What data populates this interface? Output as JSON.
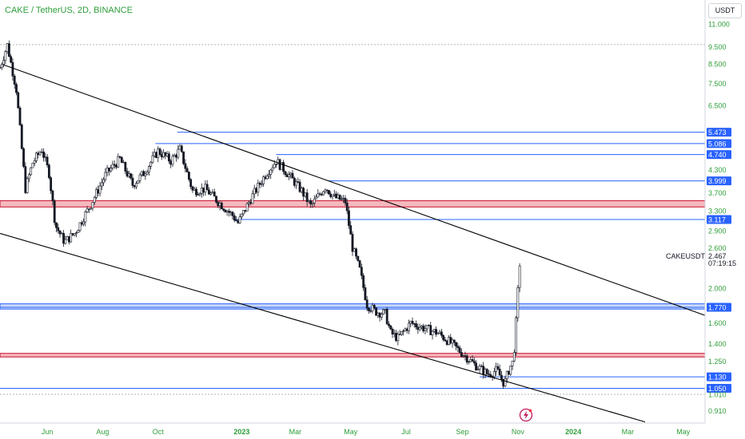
{
  "header": {
    "title": "CAKE / TetherUS, 2D, BINANCE",
    "currency": "USDT"
  },
  "current": {
    "symbol": "CAKEUSDT",
    "price": "2.467",
    "countdown": "07:19:15"
  },
  "colors": {
    "title": "#2e9e3a",
    "axis_text": "#2e9e3a",
    "candle": "#131722",
    "level_line": "#2962ff",
    "level_badge": "#2962ff",
    "resistance_zone": "#f4b8bd",
    "resistance_border": "#c8102e",
    "support_zone": "#c9d8f7",
    "channel_line": "#000000"
  },
  "chart_data": {
    "type": "candlestick",
    "title": "CAKE / TetherUS, 2D, BINANCE",
    "y_scale": "log",
    "ylim": [
      0.85,
      12.3
    ],
    "y_ticks": [
      "11.000",
      "9.500",
      "8.500",
      "7.500",
      "6.500",
      "5.473",
      "5.086",
      "4.740",
      "4.300",
      "3.999",
      "3.700",
      "3.300",
      "3.117",
      "2.900",
      "2.600",
      "2.467",
      "2.000",
      "1.770",
      "1.600",
      "1.400",
      "1.250",
      "1.130",
      "1.050",
      "1.010",
      "0.910"
    ],
    "x_ticks": [
      "Jun",
      "Aug",
      "Oct",
      "2023",
      "Mar",
      "May",
      "Jul",
      "Sep",
      "Nov",
      "2024",
      "Mar",
      "May"
    ],
    "x_range": [
      "2022-04-10",
      "2024-05-25"
    ],
    "price_levels": [
      {
        "label": "5.473",
        "value": 5.473,
        "from": "2022-10-22"
      },
      {
        "label": "5.086",
        "value": 5.086,
        "from": "2022-09-28"
      },
      {
        "label": "4.740",
        "value": 4.74,
        "from": "2023-02-08"
      },
      {
        "label": "3.999",
        "value": 3.999,
        "from": "2023-04-07"
      },
      {
        "label": "3.117",
        "value": 3.117,
        "from": "2022-12-25"
      },
      {
        "label": "1.770",
        "value": 1.77,
        "from": "2022-04-10"
      },
      {
        "label": "1.130",
        "value": 1.13,
        "from": "2023-09-20"
      },
      {
        "label": "1.050",
        "value": 1.05,
        "from": "2022-04-10"
      }
    ],
    "zones": [
      {
        "name": "resistance",
        "low": 3.38,
        "high": 3.52
      },
      {
        "name": "support",
        "low": 1.75,
        "high": 1.81
      },
      {
        "name": "resistance",
        "low": 1.285,
        "high": 1.315
      }
    ],
    "dotted_levels": [
      9.63,
      1.01
    ],
    "trendlines": [
      {
        "start": [
          "2022-04-14",
          8.45
        ],
        "end": [
          "2024-05-25",
          1.68
        ]
      },
      {
        "start": [
          "2022-04-10",
          2.85
        ],
        "end": [
          "2024-03-20",
          0.845
        ]
      }
    ],
    "ohlc_waypoints": [
      [
        "2022-04-10",
        8.3
      ],
      [
        "2022-04-18",
        9.6
      ],
      [
        "2022-04-28",
        7.2
      ],
      [
        "2022-05-08",
        3.8
      ],
      [
        "2022-05-16",
        4.5
      ],
      [
        "2022-05-26",
        4.9
      ],
      [
        "2022-06-03",
        4.2
      ],
      [
        "2022-06-10",
        3.0
      ],
      [
        "2022-06-20",
        2.7
      ],
      [
        "2022-07-01",
        2.85
      ],
      [
        "2022-07-18",
        3.4
      ],
      [
        "2022-08-05",
        4.2
      ],
      [
        "2022-08-20",
        4.6
      ],
      [
        "2022-09-03",
        3.9
      ],
      [
        "2022-09-15",
        4.2
      ],
      [
        "2022-10-01",
        4.85
      ],
      [
        "2022-10-15",
        4.55
      ],
      [
        "2022-10-25",
        4.9
      ],
      [
        "2022-11-08",
        3.75
      ],
      [
        "2022-11-22",
        3.8
      ],
      [
        "2022-12-06",
        3.5
      ],
      [
        "2022-12-22",
        3.2
      ],
      [
        "2022-12-28",
        3.05
      ],
      [
        "2023-01-12",
        3.6
      ],
      [
        "2023-01-28",
        4.2
      ],
      [
        "2023-02-08",
        4.55
      ],
      [
        "2023-02-22",
        4.15
      ],
      [
        "2023-03-08",
        3.75
      ],
      [
        "2023-03-18",
        3.4
      ],
      [
        "2023-04-03",
        3.85
      ],
      [
        "2023-04-13",
        3.6
      ],
      [
        "2023-04-25",
        3.5
      ],
      [
        "2023-05-03",
        2.6
      ],
      [
        "2023-05-11",
        2.25
      ],
      [
        "2023-05-19",
        1.8
      ],
      [
        "2023-05-29",
        1.72
      ],
      [
        "2023-06-08",
        1.7
      ],
      [
        "2023-06-14",
        1.5
      ],
      [
        "2023-06-22",
        1.45
      ],
      [
        "2023-07-06",
        1.6
      ],
      [
        "2023-07-20",
        1.55
      ],
      [
        "2023-08-05",
        1.5
      ],
      [
        "2023-08-20",
        1.4
      ],
      [
        "2023-09-03",
        1.3
      ],
      [
        "2023-09-15",
        1.22
      ],
      [
        "2023-09-29",
        1.15
      ],
      [
        "2023-10-09",
        1.18
      ],
      [
        "2023-10-17",
        1.08
      ],
      [
        "2023-10-23",
        1.2
      ],
      [
        "2023-10-27",
        1.25
      ],
      [
        "2023-10-31",
        1.75
      ],
      [
        "2023-11-02",
        2.2
      ],
      [
        "2023-11-04",
        2.5
      ]
    ]
  }
}
